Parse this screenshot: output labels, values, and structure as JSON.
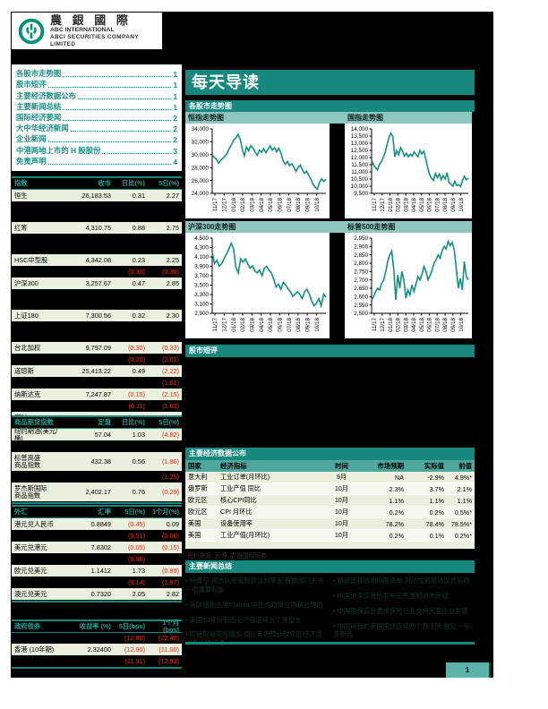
{
  "logo": {
    "cn": "農 銀 國 際",
    "en1": "ABC INTERNATIONAL",
    "en2": "ABCI SECURITIES COMPANY LIMITED"
  },
  "header": {
    "title": "每天导读"
  },
  "toc": {
    "items": [
      {
        "label": "各股市走势图",
        "page": "1"
      },
      {
        "label": "股市短评",
        "page": "1"
      },
      {
        "label": "主要经济数据公布",
        "page": "1"
      },
      {
        "label": "主要新闻总结",
        "page": "1"
      },
      {
        "label": "国际经济要闻",
        "page": "2"
      },
      {
        "label": "大中华经济新闻",
        "page": "2"
      },
      {
        "label": "企业新闻",
        "page": "2"
      },
      {
        "label": "中港两地上市的 H 股股份",
        "page": "3"
      },
      {
        "label": "免责声明",
        "page": "4"
      }
    ]
  },
  "charts_section": {
    "title": "各股市走势图"
  },
  "chart_data": [
    {
      "type": "line",
      "title": "恒指走势图",
      "ylim": [
        24000,
        34000
      ],
      "ystep": 2000,
      "line_color": "#12917f",
      "x_labels": [
        "11/17",
        "12/17",
        "01/18",
        "02/18",
        "03/18",
        "04/18",
        "05/18",
        "06/18",
        "07/18",
        "08/18",
        "09/18",
        "10/18"
      ],
      "values": [
        29950,
        29600,
        29250,
        28700,
        29150,
        29450,
        29800,
        30250,
        31000,
        31600,
        32250,
        32600,
        33150,
        32400,
        30900,
        29800,
        31200,
        30600,
        31400,
        31050,
        30400,
        29900,
        30700,
        30400,
        30950,
        30300,
        30800,
        31400,
        30700,
        31100,
        30450,
        31000,
        30300,
        29100,
        28500,
        28950,
        28300,
        28600,
        28100,
        27400,
        28000,
        28400,
        27700,
        27100,
        27450,
        26800,
        26200,
        25400,
        24950,
        24650,
        25700,
        26250,
        25850,
        26180
      ]
    },
    {
      "type": "line",
      "title": "国指走势图",
      "ylim": [
        9500,
        14000
      ],
      "ystep": 500,
      "line_color": "#12917f",
      "x_labels": [
        "11/17",
        "12/17",
        "01/18",
        "02/18",
        "03/18",
        "04/18",
        "05/18",
        "06/18",
        "07/18",
        "08/18",
        "09/18",
        "10/18"
      ],
      "values": [
        11800,
        11500,
        11300,
        11150,
        11500,
        11700,
        12000,
        12350,
        12900,
        13400,
        13700,
        13450,
        12050,
        12500,
        12200,
        12700,
        12450,
        12100,
        12300,
        12050,
        12250,
        12100,
        12400,
        12200,
        12050,
        12500,
        12250,
        12450,
        11900,
        11300,
        10800,
        10550,
        10400,
        10900,
        10600,
        10850,
        10450,
        10750,
        10500,
        10950,
        10250,
        10150,
        10000,
        10350,
        10050,
        10100,
        9980,
        10400,
        10700,
        10450,
        10550
      ]
    },
    {
      "type": "line",
      "title": "沪深300走势图",
      "ylim": [
        2900,
        4500
      ],
      "ystep": 200,
      "line_color": "#12917f",
      "x_labels": [
        "11/17",
        "12/17",
        "01/18",
        "02/18",
        "03/18",
        "04/18",
        "05/18",
        "06/18",
        "07/18",
        "08/18",
        "09/18",
        "10/18"
      ],
      "values": [
        4200,
        3960,
        4030,
        3900,
        3960,
        4060,
        4160,
        4260,
        4390,
        4280,
        3880,
        3760,
        4060,
        3990,
        4060,
        3950,
        3860,
        3910,
        3800,
        3760,
        3820,
        3700,
        3860,
        3900,
        3810,
        3760,
        3620,
        3460,
        3520,
        3410,
        3560,
        3500,
        3420,
        3360,
        3260,
        3310,
        3360,
        3300,
        3210,
        3360,
        3410,
        3310,
        3160,
        3060,
        3120,
        3210,
        3060,
        3310,
        3240
      ]
    },
    {
      "type": "line",
      "title": "标普500走势图",
      "ylim": [
        2500,
        2950
      ],
      "ystep": 50,
      "line_color": "#12917f",
      "x_labels": [
        "11/17",
        "12/17",
        "01/18",
        "02/18",
        "03/18",
        "04/18",
        "05/18",
        "06/18",
        "07/18",
        "08/18",
        "09/18",
        "10/18"
      ],
      "values": [
        2580,
        2600,
        2630,
        2650,
        2640,
        2680,
        2700,
        2750,
        2810,
        2850,
        2872,
        2760,
        2581,
        2730,
        2650,
        2750,
        2700,
        2590,
        2640,
        2610,
        2670,
        2630,
        2675,
        2720,
        2700,
        2735,
        2780,
        2750,
        2700,
        2725,
        2760,
        2800,
        2820,
        2850,
        2830,
        2875,
        2900,
        2885,
        2930,
        2905,
        2925,
        2880,
        2770,
        2650,
        2710,
        2640,
        2810,
        2720,
        2700
      ]
    }
  ],
  "index_table": {
    "cols": [
      "指数",
      "收市",
      "日比(%)",
      "5日(%)"
    ],
    "rows": [
      {
        "s": "l",
        "c": [
          "恒生",
          "26,183.53",
          "0.31",
          "2.27"
        ]
      },
      {
        "s": "d",
        "tall": true,
        "c": [
          "",
          "",
          "",
          ""
        ]
      },
      {
        "s": "l",
        "c": [
          "红筹",
          "4,310.75",
          "0.88",
          "2.75"
        ]
      },
      {
        "s": "d",
        "tall": true,
        "c": [
          "",
          "",
          "",
          ""
        ]
      },
      {
        "s": "l",
        "c": [
          "HSC中型股",
          "4,342.08",
          "0.23",
          "2.25"
        ]
      },
      {
        "s": "d",
        "c": [
          "",
          "",
          "(0.30)",
          "(0.36)"
        ]
      },
      {
        "s": "l",
        "c": [
          "沪深300",
          "3,257.67",
          "0.47",
          "2.85"
        ]
      },
      {
        "s": "d",
        "tall": true,
        "c": [
          "",
          "",
          "",
          ""
        ]
      },
      {
        "s": "l",
        "c": [
          "上证180",
          "7,300.56",
          "0.32",
          "2.30"
        ]
      },
      {
        "s": "d",
        "tall": true,
        "c": [
          "",
          "",
          "",
          ""
        ]
      },
      {
        "s": "l",
        "c": [
          "台北加权",
          "9,797.09",
          "(0.30)",
          "(0.33)"
        ]
      },
      {
        "s": "d",
        "c": [
          "",
          "",
          "(0.20)",
          "(2.01)"
        ]
      },
      {
        "s": "l",
        "c": [
          "道琼斯",
          "25,413.22",
          "0.49",
          "(2.22)"
        ]
      },
      {
        "s": "d",
        "c": [
          "",
          "",
          "",
          "(1.61)"
        ]
      },
      {
        "s": "l",
        "c": [
          "纳斯达克",
          "7,247.87",
          "(0.15)",
          "(2.15)"
        ]
      },
      {
        "s": "d",
        "c": [
          "",
          "",
          "(0.11)",
          "(1.63)"
        ]
      },
      {
        "s": "l",
        "c": [
          "富时100",
          "7,013.88",
          "(0.34)",
          "(1.29)"
        ]
      },
      {
        "s": "d",
        "c": [
          "",
          "",
          "(0.17)",
          "(1.60)"
        ]
      }
    ]
  },
  "commodity_table": {
    "cols": [
      "商品期货指数",
      "定盘",
      "日比(%)",
      "5日(%)"
    ],
    "rows": [
      {
        "s": "l",
        "c": [
          "纽约期油(美元/桶)",
          "57.04",
          "1.03",
          "(4.82)"
        ]
      },
      {
        "s": "d",
        "c": [
          "",
          "",
          "",
          ""
        ]
      },
      {
        "s": "l",
        "two": true,
        "c": [
          "标普高盛\n商品指数",
          "432.38",
          "0.56",
          "(1.86)"
        ]
      },
      {
        "s": "d",
        "c": [
          "",
          "",
          "",
          "(1.25)"
        ]
      },
      {
        "s": "l",
        "two": true,
        "c": [
          "罗杰斯国际\n商品指数",
          "2,402.17",
          "0.76",
          "(0.29)"
        ]
      }
    ]
  },
  "fx_table": {
    "cols": [
      "外汇",
      "汇率",
      "5日(%)",
      "1个月(%)"
    ],
    "rows": [
      {
        "s": "l",
        "c": [
          "港元兑人民币",
          "0.8849",
          "(0.45)",
          "0.09"
        ]
      },
      {
        "s": "d",
        "c": [
          "",
          "",
          "(0.51)",
          "(0.06)"
        ]
      },
      {
        "s": "l",
        "c": [
          "美元兑港元",
          "7.8302",
          "(0.05)",
          "(0.15)"
        ]
      },
      {
        "s": "d",
        "c": [
          "",
          "",
          "(0.96)",
          ""
        ]
      },
      {
        "s": "l",
        "c": [
          "欧元兑美元",
          "1.1412",
          "1.73",
          "(0.89)"
        ]
      },
      {
        "s": "d",
        "c": [
          "",
          "",
          "(0.14)",
          "(1.87)"
        ]
      },
      {
        "s": "l",
        "c": [
          "澳元兑美元",
          "0.7320",
          "2.05",
          "2.82"
        ]
      }
    ]
  },
  "bond_table": {
    "cols": [
      "政府债券",
      "收益率 (%)",
      "5日(bps)",
      "1个月(bps)"
    ],
    "rows": [
      {
        "s": "d",
        "c": [
          "",
          "",
          "(12.80)",
          "(22.40)"
        ]
      },
      {
        "s": "l",
        "c": [
          "香港 (10年期)",
          "2.32400",
          "(12.90)",
          "(11.00)"
        ]
      },
      {
        "s": "d",
        "c": [
          "",
          "",
          "(11.91)",
          "(12.93)"
        ]
      }
    ]
  },
  "comment_section": {
    "title": "股市短评"
  },
  "econ_section": {
    "title": "主要经济数据公布",
    "cols": [
      "国家",
      "经济指标",
      "时间",
      "市场预期",
      "实际值",
      "前值"
    ],
    "rows": [
      [
        "意大利",
        "工业订单(月环比)",
        "9月",
        "NA",
        "-2.9%",
        "4.9%*"
      ],
      [
        "俄罗斯",
        "工业产值 同比",
        "10月",
        "2.3%",
        "3.7%",
        "2.1%"
      ],
      [
        "欧元区",
        "核心CPI同比",
        "10月",
        "1.1%",
        "1.1%",
        "1.1%"
      ],
      [
        "欧元区",
        "CPI 月环比",
        "10月",
        "0.2%",
        "0.2%",
        "0.5%*"
      ],
      [
        "美国",
        "设备使用率",
        "10月",
        "78.2%",
        "78.4%",
        "78.5%*"
      ],
      [
        "美国",
        "工业产值(月环比)",
        "10月",
        "0.2%",
        "0.1%",
        "0.2%*"
      ]
    ],
    "source": "资料来源: 彭博, 农银国际证券"
  },
  "news_section": {
    "title": "主要新闻总结",
    "left": [
      "特蕾莎·梅团队接管脱欧谈判事宜,脱欧部门失去一项重要职能",
      "美联储副主席Clarida:中性的政策立场是合理的",
      "美国10月份制造业产值连续五个月增长",
      "即使贸易风险增加,德拉吉仍预计欧元区经济增长势头将持续"
    ],
    "right": [
      "特朗普称收到中国清单,对达成贸易协议表乐观",
      "中国沪深交易所发布完善强制退市新规",
      "中国银保监会要求保险行业支持民营企业发展",
      "中国持有的美国国债连续四个月下降,触及一年多新低"
    ]
  },
  "footer": {
    "page": "1"
  },
  "colors": {
    "accent_teal": "#17887e",
    "light_teal_bar": "#8cc6bf",
    "row_green": "#eaf0de",
    "negative_red": "#e62b1e",
    "chart_line": "#12917f",
    "logo_green": "#009178"
  }
}
